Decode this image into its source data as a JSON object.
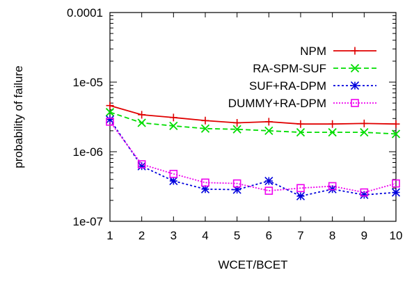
{
  "chart_data": {
    "type": "line",
    "title": "",
    "xlabel": "WCET/BCET",
    "ylabel": "probability of failure",
    "x": [
      1,
      2,
      3,
      4,
      5,
      6,
      7,
      8,
      9,
      10
    ],
    "xlim": [
      1,
      10
    ],
    "ylim": [
      1e-07,
      0.0001
    ],
    "yscale": "log",
    "xticks": [
      "1",
      "2",
      "3",
      "4",
      "5",
      "6",
      "7",
      "8",
      "9",
      "10"
    ],
    "yticks": [
      {
        "value": 1e-07,
        "label": "1e-07"
      },
      {
        "value": 1e-06,
        "label": "1e-06"
      },
      {
        "value": 1e-05,
        "label": "1e-05"
      },
      {
        "value": 0.0001,
        "label": "0.0001"
      }
    ],
    "grid": false,
    "legend_position": "top-right",
    "series": [
      {
        "name": "NPM",
        "color": "#e00000",
        "marker": "plus",
        "dash": "solid",
        "values": [
          4.6e-06,
          3.4e-06,
          3.1e-06,
          2.8e-06,
          2.6e-06,
          2.7e-06,
          2.5e-06,
          2.5e-06,
          2.55e-06,
          2.5e-06
        ]
      },
      {
        "name": "RA-SPM-SUF",
        "color": "#00dd00",
        "marker": "x",
        "dash": "dashed",
        "values": [
          3.7e-06,
          2.6e-06,
          2.35e-06,
          2.15e-06,
          2.1e-06,
          2e-06,
          1.9e-06,
          1.9e-06,
          1.9e-06,
          1.8e-06
        ]
      },
      {
        "name": "SUF+RA-DPM",
        "color": "#0000dd",
        "marker": "star",
        "dash": "dotted",
        "values": [
          2.9e-06,
          6.2e-07,
          3.8e-07,
          2.9e-07,
          2.85e-07,
          3.8e-07,
          2.3e-07,
          2.9e-07,
          2.4e-07,
          2.6e-07
        ]
      },
      {
        "name": "DUMMY+RA-DPM",
        "color": "#ee00ee",
        "marker": "square",
        "dash": "dotted-fine",
        "values": [
          2.7e-06,
          6.6e-07,
          4.8e-07,
          3.6e-07,
          3.5e-07,
          2.75e-07,
          3e-07,
          3.2e-07,
          2.6e-07,
          3.5e-07
        ]
      }
    ]
  }
}
